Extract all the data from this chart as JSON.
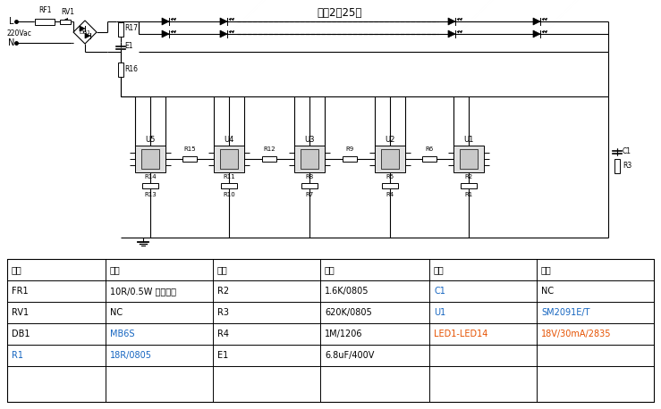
{
  "title": "灯珠2并25串",
  "fig_width": 7.39,
  "fig_height": 4.58,
  "bg_color": "#ffffff",
  "cc": "#000000",
  "blue": "#1565C0",
  "orange": "#E65100",
  "table_rows": [
    [
      "FR1",
      "#000000",
      "10R/0.5W 绕线电阻",
      "#000000",
      "R2",
      "#000000",
      "1.6K/0805",
      "#000000",
      "C1",
      "#1565C0",
      "NC",
      "#000000"
    ],
    [
      "RV1",
      "#000000",
      "NC",
      "#000000",
      "R3",
      "#000000",
      "620K/0805",
      "#000000",
      "U1",
      "#1565C0",
      "SM2091E/T",
      "#1565C0"
    ],
    [
      "DB1",
      "#000000",
      "MB6S",
      "#1565C0",
      "R4",
      "#000000",
      "1M/1206",
      "#000000",
      "LED1-LED14",
      "#E65100",
      "18V/30mA/2835",
      "#E65100"
    ],
    [
      "R1",
      "#1565C0",
      "18R/0805",
      "#1565C0",
      "E1",
      "#000000",
      "6.8uF/400V",
      "#000000",
      "",
      "#000000",
      "",
      "#000000"
    ]
  ],
  "ic_x": [
    168,
    256,
    346,
    436,
    524
  ],
  "ic_labels": [
    "U5",
    "U4",
    "U3",
    "U2",
    "U1"
  ],
  "r_between": [
    [
      "R15",
      212
    ],
    [
      "R12",
      301
    ],
    [
      "R9",
      391
    ],
    [
      "R6",
      480
    ]
  ],
  "r_sense_a": [
    "R14",
    "R11",
    "R8",
    "R5",
    "R2"
  ],
  "r_sense_b": [
    "R13",
    "R10",
    "R7",
    "R4",
    "R1"
  ]
}
